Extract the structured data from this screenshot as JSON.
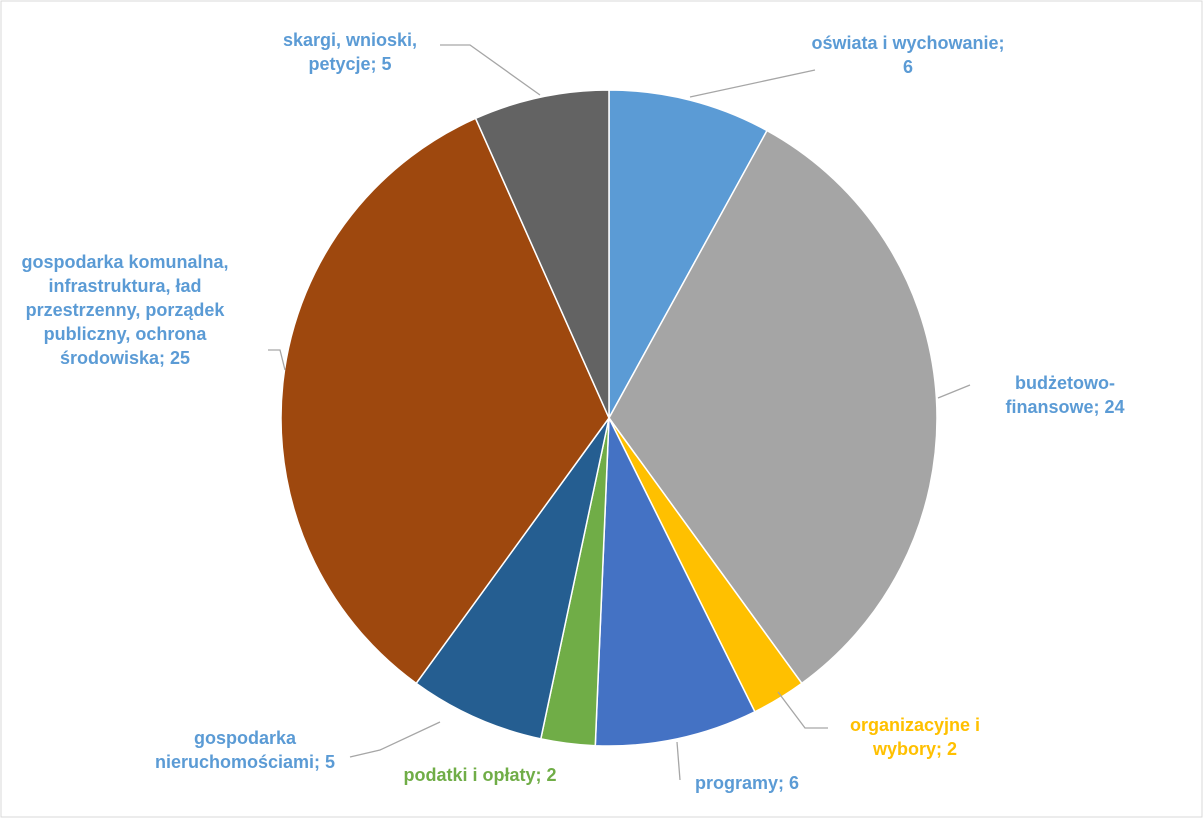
{
  "chart_data": {
    "type": "pie",
    "categories": [
      "oświata i wychowanie",
      "budżetowo-finansowe",
      "organizacyjne i wybory",
      "programy",
      "podatki i opłaty",
      "gospodarka nieruchomościami",
      "gospodarka komunalna, infrastruktura, ład przestrzenny, porządek publiczny, ochrona środowiska",
      "skargi, wnioski, petycje"
    ],
    "values": [
      6,
      24,
      2,
      6,
      2,
      5,
      25,
      5
    ],
    "value_labels": [
      "; 6",
      "; 24",
      "; 2",
      "; 6",
      "; 2",
      "; 5",
      "; 25",
      "; 5"
    ],
    "colors": [
      "#5B9BD5",
      "#A5A5A5",
      "#FFC000",
      "#4472C4",
      "#70AD47",
      "#255E91",
      "#9E480E",
      "#636363"
    ],
    "label_colors": [
      "#5B9BD5",
      "#5B9BD5",
      "#FFC000",
      "#5B9BD5",
      "#70AD47",
      "#5B9BD5",
      "#5B9BD5",
      "#5B9BD5"
    ]
  }
}
